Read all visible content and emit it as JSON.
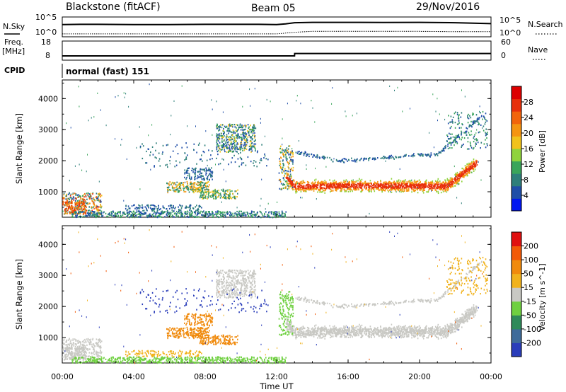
{
  "header": {
    "station": "Blackstone (fitACF)",
    "beam": "Beam 05",
    "date": "29/Nov/2016"
  },
  "noise_panel": {
    "left_label": "N.Sky",
    "right_label": "N.Search",
    "left_top": "10^5",
    "left_bottom": "10^0",
    "right_top": "10^5",
    "right_bottom": "10^0"
  },
  "freq_panel": {
    "left_label_1": "Freq.",
    "left_label_2": "[MHz]",
    "left_top": "18",
    "left_bottom": "8",
    "right_label": "Nave",
    "right_top": "60",
    "right_bottom": "0"
  },
  "cpid_panel": {
    "label": "CPID",
    "text": "normal (fast) 151"
  },
  "x_axis": {
    "title": "Time UT",
    "ticks": [
      "00:00",
      "04:00",
      "08:00",
      "12:00",
      "16:00",
      "20:00",
      "00:00"
    ]
  },
  "y_axis": {
    "title": "Slant Range [km]",
    "ticks": [
      "1000",
      "2000",
      "3000",
      "4000"
    ]
  },
  "power_colorbar": {
    "title": "Power [dB]",
    "ticks": [
      "4",
      "8",
      "12",
      "16",
      "20",
      "24",
      "28"
    ],
    "colors": [
      "#0016f0",
      "#1f4ea8",
      "#2e7f7a",
      "#3aa55a",
      "#8fd33c",
      "#f1c21c",
      "#f59410",
      "#f2640a",
      "#e8300a",
      "#dd0000"
    ]
  },
  "velocity_colorbar": {
    "title": "Velocity [m s^-1]",
    "ticks": [
      "200",
      "100",
      "50",
      "15",
      "-15",
      "-50",
      "-100",
      "-200"
    ],
    "colors": [
      "#2a3dba",
      "#3f6b9a",
      "#2f8a5a",
      "#6fd040",
      "#c9c9c4",
      "#f1b21c",
      "#f08a0c",
      "#f25a08",
      "#e01010"
    ]
  },
  "chart_data": [
    {
      "type": "line",
      "title": "",
      "xlabel": "",
      "ylabel": "N.Sky",
      "yscale": "log",
      "ylim": [
        1,
        100000
      ],
      "series": [
        {
          "x": [
            0,
            1,
            2,
            4,
            6,
            8,
            10,
            11,
            12,
            12.5,
            13,
            14,
            16,
            18,
            20,
            22,
            23,
            24
          ],
          "values": [
            3000,
            3500,
            3500,
            3000,
            3000,
            3500,
            3500,
            3500,
            3000,
            5000,
            12000,
            15000,
            15000,
            14000,
            15000,
            12000,
            8000,
            6000
          ]
        },
        {
          "x": [
            0,
            2,
            4,
            6,
            8,
            10,
            12,
            13,
            14,
            16,
            18,
            20,
            22,
            24
          ],
          "values": [
            3,
            3,
            3,
            3,
            3,
            3,
            3,
            10,
            20,
            20,
            20,
            20,
            15,
            15
          ]
        }
      ]
    },
    {
      "type": "line",
      "title": "",
      "xlabel": "",
      "ylabel": "Freq. [MHz]",
      "ylim": [
        8,
        18
      ],
      "series": [
        {
          "x": [
            0,
            13,
            13.01,
            24
          ],
          "values": [
            8.5,
            8.5,
            10.2,
            10.2
          ]
        }
      ]
    },
    {
      "type": "heatmap",
      "title": "",
      "xlabel": "Time UT",
      "ylabel": "Slant Range [km]",
      "xlim": [
        0,
        24
      ],
      "ylim": [
        180,
        4600
      ],
      "value_label": "Power [dB]",
      "clim": [
        0,
        32
      ]
    },
    {
      "type": "heatmap",
      "title": "",
      "xlabel": "Time UT",
      "ylabel": "Slant Range [km]",
      "xlim": [
        0,
        24
      ],
      "ylim": [
        180,
        4600
      ],
      "value_label": "Velocity [m s^-1]",
      "clim": [
        -250,
        250
      ]
    }
  ]
}
